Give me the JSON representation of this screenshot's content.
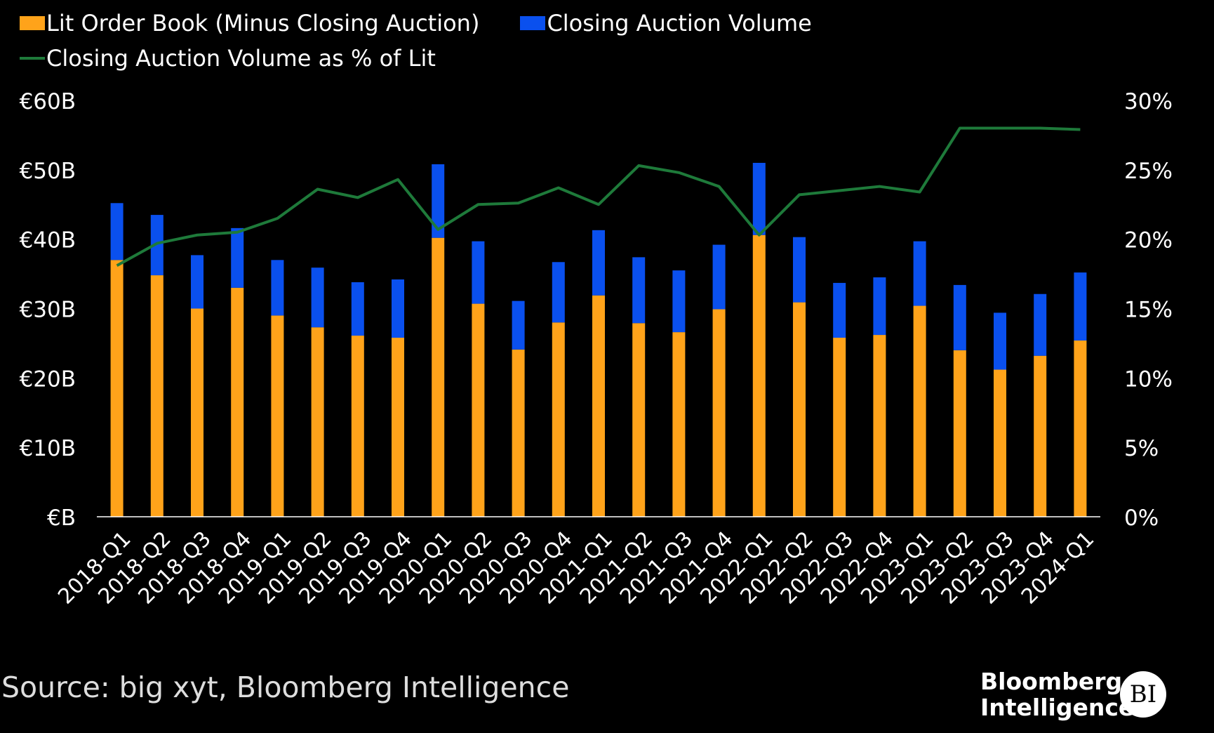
{
  "colors": {
    "lit": "#FFA31A",
    "closing": "#0A50EE",
    "pct": "#1E7A3A",
    "axis": "#FFFFFF",
    "background": "#000000"
  },
  "source": "Source: big xyt, Bloomberg Intelligence",
  "brand": {
    "line1": "Bloomberg",
    "line2": "Intelligence",
    "badge": "BI"
  },
  "chart_data": {
    "type": "bar",
    "stacked": true,
    "title": "",
    "categories": [
      "2018-Q1",
      "2018-Q2",
      "2018-Q3",
      "2018-Q4",
      "2019-Q1",
      "2019-Q2",
      "2019-Q3",
      "2019-Q4",
      "2020-Q1",
      "2020-Q2",
      "2020-Q3",
      "2020-Q4",
      "2021-Q1",
      "2021-Q2",
      "2021-Q3",
      "2021-Q4",
      "2022-Q1",
      "2022-Q2",
      "2022-Q3",
      "2022-Q4",
      "2023-Q1",
      "2023-Q2",
      "2023-Q3",
      "2023-Q4",
      "2024-Q1"
    ],
    "series": [
      {
        "name": "Lit Order Book (Minus Closing Auction)",
        "axis": "left",
        "type": "bar",
        "values": [
          37.0,
          34.8,
          30.0,
          33.0,
          29.0,
          27.3,
          26.1,
          25.8,
          40.2,
          30.7,
          24.1,
          28.0,
          31.9,
          27.9,
          26.6,
          29.9,
          40.6,
          30.9,
          25.8,
          26.2,
          30.4,
          24.0,
          21.2,
          23.2,
          25.4
        ]
      },
      {
        "name": "Closing Auction Volume",
        "axis": "left",
        "type": "bar",
        "values": [
          8.2,
          8.7,
          7.7,
          8.6,
          8.0,
          8.6,
          7.7,
          8.4,
          10.6,
          9.0,
          7.0,
          8.7,
          9.4,
          9.5,
          8.9,
          9.3,
          10.4,
          9.4,
          7.9,
          8.3,
          9.3,
          9.4,
          8.2,
          8.9,
          9.8
        ]
      },
      {
        "name": "Closing Auction Volume as % of Lit",
        "axis": "right",
        "type": "line",
        "values": [
          18.1,
          19.7,
          20.3,
          20.5,
          21.5,
          23.6,
          23.0,
          24.3,
          20.7,
          22.5,
          22.6,
          23.7,
          22.5,
          25.3,
          24.8,
          23.8,
          20.3,
          23.2,
          23.5,
          23.8,
          23.4,
          28.0,
          28.0,
          28.0,
          27.9
        ]
      }
    ],
    "yaxis_left": {
      "ylim": [
        0,
        60
      ],
      "ticks": [
        "€B",
        "€10B",
        "€20B",
        "€30B",
        "€40B",
        "€50B",
        "€60B"
      ]
    },
    "yaxis_right": {
      "ylim": [
        0,
        30
      ],
      "ticks": [
        "0%",
        "5%",
        "10%",
        "15%",
        "20%",
        "25%",
        "30%"
      ]
    },
    "xlabel": "",
    "ylabel": "",
    "legend_placement": "top-left",
    "grid": false
  }
}
